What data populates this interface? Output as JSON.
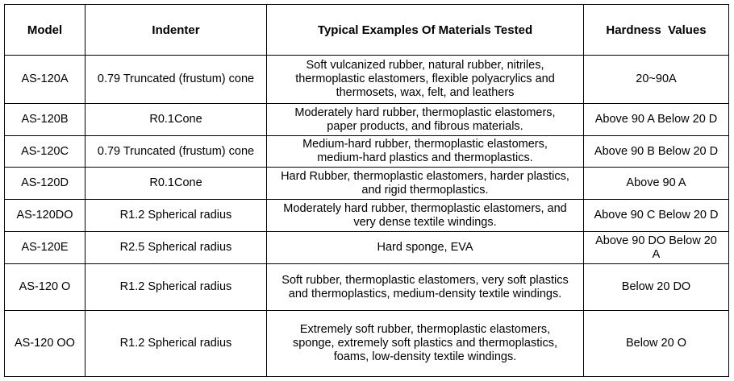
{
  "table": {
    "header": [
      "Model",
      "Indenter",
      "Typical Examples Of Materials Tested",
      "Hardness  Values"
    ],
    "rows": [
      [
        "AS-120A",
        "0.79 Truncated (frustum) cone",
        "Soft vulcanized rubber, natural rubber, nitriles, thermoplastic elastomers, flexible polyacrylics and thermosets, wax, felt, and leathers",
        "20~90A"
      ],
      [
        "AS-120B",
        "R0.1Cone",
        "Moderately hard rubber, thermoplastic elastomers, paper products, and fibrous materials.",
        "Above 90 A Below 20 D"
      ],
      [
        "AS-120C",
        "0.79 Truncated (frustum) cone",
        "Medium-hard rubber, thermoplastic elastomers, medium-hard plastics and thermoplastics.",
        "Above 90 B Below 20 D"
      ],
      [
        "AS-120D",
        "R0.1Cone",
        "Hard Rubber, thermoplastic elastomers, harder plastics, and rigid thermoplastics.",
        "Above 90 A"
      ],
      [
        "AS-120DO",
        "R1.2 Spherical radius",
        "Moderately hard rubber, thermoplastic elastomers, and very dense textile windings.",
        "Above 90 C Below 20 D"
      ],
      [
        "AS-120E",
        "R2.5 Spherical radius",
        "Hard sponge, EVA",
        "Above 90 DO Below 20 A"
      ],
      [
        "AS-120 O",
        "R1.2 Spherical radius",
        "Soft rubber, thermoplastic elastomers, very soft plastics and thermoplastics, medium-density textile windings.",
        "Below 20 DO"
      ],
      [
        "AS-120 OO",
        "R1.2 Spherical radius",
        "Extremely soft rubber, thermoplastic elastomers, sponge, extremely soft plastics and thermoplastics, foams, low-density textile windings.",
        "Below 20 O"
      ]
    ]
  }
}
